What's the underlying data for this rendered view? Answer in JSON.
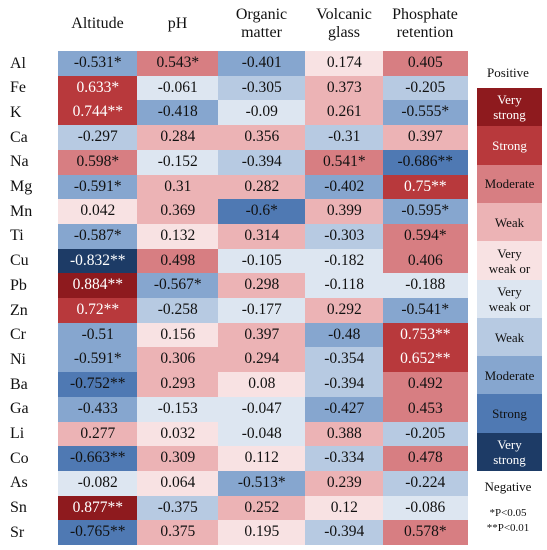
{
  "chart_data": {
    "type": "heatmap",
    "columns": [
      "Altitude",
      "pH",
      "Organic\nmatter",
      "Volcanic\nglass",
      "Phosphate\nretention"
    ],
    "rows": [
      "Al",
      "Fe",
      "K",
      "Ca",
      "Na",
      "Mg",
      "Mn",
      "Ti",
      "Cu",
      "Pb",
      "Zn",
      "Cr",
      "Ni",
      "Ba",
      "Ga",
      "Li",
      "Co",
      "As",
      "Sn",
      "Sr"
    ],
    "values": [
      [
        -0.531,
        0.543,
        -0.401,
        0.174,
        0.405
      ],
      [
        0.633,
        -0.061,
        -0.305,
        0.373,
        -0.205
      ],
      [
        0.744,
        -0.418,
        -0.09,
        0.261,
        -0.555
      ],
      [
        -0.297,
        0.284,
        0.356,
        -0.31,
        0.397
      ],
      [
        0.598,
        -0.152,
        -0.394,
        0.541,
        -0.686
      ],
      [
        -0.591,
        0.31,
        0.282,
        -0.402,
        0.75
      ],
      [
        0.042,
        0.369,
        -0.6,
        0.399,
        -0.595
      ],
      [
        -0.587,
        0.132,
        0.314,
        -0.303,
        0.594
      ],
      [
        -0.832,
        0.498,
        -0.105,
        -0.182,
        0.406
      ],
      [
        0.884,
        -0.567,
        0.298,
        -0.118,
        -0.188
      ],
      [
        0.72,
        -0.258,
        -0.177,
        0.292,
        -0.541
      ],
      [
        -0.51,
        0.156,
        0.397,
        -0.48,
        0.753
      ],
      [
        -0.591,
        0.306,
        0.294,
        -0.354,
        0.652
      ],
      [
        -0.752,
        0.293,
        0.08,
        -0.394,
        0.492
      ],
      [
        -0.433,
        -0.153,
        -0.047,
        -0.427,
        0.453
      ],
      [
        0.277,
        0.032,
        -0.048,
        0.388,
        -0.205
      ],
      [
        -0.663,
        0.309,
        0.112,
        -0.334,
        0.478
      ],
      [
        -0.082,
        0.064,
        -0.513,
        0.239,
        -0.224
      ],
      [
        0.877,
        -0.375,
        0.252,
        0.12,
        -0.086
      ],
      [
        -0.765,
        0.375,
        0.195,
        -0.394,
        0.578
      ]
    ],
    "labels": [
      [
        "-0.531*",
        "0.543*",
        "-0.401",
        "0.174",
        "0.405"
      ],
      [
        "0.633*",
        "-0.061",
        "-0.305",
        "0.373",
        "-0.205"
      ],
      [
        "0.744**",
        "-0.418",
        "-0.09",
        "0.261",
        "-0.555*"
      ],
      [
        "-0.297",
        "0.284",
        "0.356",
        "-0.31",
        "0.397"
      ],
      [
        "0.598*",
        "-0.152",
        "-0.394",
        "0.541*",
        "-0.686**"
      ],
      [
        "-0.591*",
        "0.31",
        "0.282",
        "-0.402",
        "0.75**"
      ],
      [
        "0.042",
        "0.369",
        "-0.6*",
        "0.399",
        "-0.595*"
      ],
      [
        "-0.587*",
        "0.132",
        "0.314",
        "-0.303",
        "0.594*"
      ],
      [
        "-0.832**",
        "0.498",
        "-0.105",
        "-0.182",
        "0.406"
      ],
      [
        "0.884**",
        "-0.567*",
        "0.298",
        "-0.118",
        "-0.188"
      ],
      [
        "0.72**",
        "-0.258",
        "-0.177",
        "0.292",
        "-0.541*"
      ],
      [
        "-0.51",
        "0.156",
        "0.397",
        "-0.48",
        "0.753**"
      ],
      [
        "-0.591*",
        "0.306",
        "0.294",
        "-0.354",
        "0.652**"
      ],
      [
        "-0.752**",
        "0.293",
        "0.08",
        "-0.394",
        "0.492"
      ],
      [
        "-0.433",
        "-0.153",
        "-0.047",
        "-0.427",
        "0.453"
      ],
      [
        "0.277",
        "0.032",
        "-0.048",
        "0.388",
        "-0.205"
      ],
      [
        "-0.663**",
        "0.309",
        "0.112",
        "-0.334",
        "0.478"
      ],
      [
        "-0.082",
        "0.064",
        "-0.513*",
        "0.239",
        "-0.224"
      ],
      [
        "0.877**",
        "-0.375",
        "0.252",
        "0.12",
        "-0.086"
      ],
      [
        "-0.765**",
        "0.375",
        "0.195",
        "-0.394",
        "0.578*"
      ]
    ],
    "legend": {
      "positive_label": "Positive",
      "negative_label": "Negative",
      "items": [
        {
          "label": "Very\nstrong",
          "color": "#8e1a1e",
          "text_color": "#ffffff"
        },
        {
          "label": "Strong",
          "color": "#b8393c",
          "text_color": "#ffffff"
        },
        {
          "label": "Moderate",
          "color": "#d77e82",
          "text_color": "#111111"
        },
        {
          "label": "Weak",
          "color": "#ecb3b5",
          "text_color": "#111111"
        },
        {
          "label": "Very\nweak or",
          "color": "#f8e2e3",
          "text_color": "#111111"
        },
        {
          "label": "Very\nweak or",
          "color": "#dde6f1",
          "text_color": "#111111"
        },
        {
          "label": "Weak",
          "color": "#b7cae2",
          "text_color": "#111111"
        },
        {
          "label": "Moderate",
          "color": "#86a6cf",
          "text_color": "#111111"
        },
        {
          "label": "Strong",
          "color": "#4f79b3",
          "text_color": "#111111"
        },
        {
          "label": "Very\nstrong",
          "color": "#1d3b66",
          "text_color": "#ffffff"
        }
      ]
    },
    "notes": [
      "*P<0.05",
      "**P<0.01"
    ],
    "grid": false
  }
}
